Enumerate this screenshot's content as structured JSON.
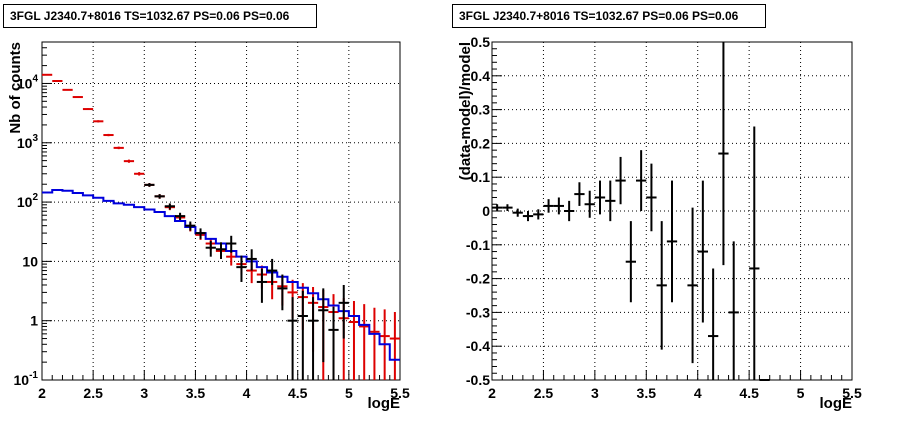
{
  "chart_data": [
    {
      "type": "scatter",
      "title": "3FGL J2340.7+8016 TS=1032.67 PS=0.06 PS=0.06",
      "xlabel": "logE",
      "ylabel": "Nb of counts",
      "xlim": [
        2,
        5.5
      ],
      "ylim": [
        0.1,
        50000
      ],
      "yscale": "log",
      "grid": true,
      "x_ticks": [
        "2",
        "2.5",
        "3",
        "3.5",
        "4",
        "4.5",
        "5",
        "5.5"
      ],
      "y_ticks": [
        "10^-1",
        "1",
        "10",
        "10^2",
        "10^3",
        "10^4"
      ],
      "bin_width": 0.1,
      "series": [
        {
          "color": "#dd0000",
          "style": "errorbar",
          "x": [
            2.05,
            2.15,
            2.25,
            2.35,
            2.45,
            2.55,
            2.65,
            2.75,
            2.85,
            2.95,
            3.05,
            3.15,
            3.25,
            3.35,
            3.45,
            3.55,
            3.65,
            3.75,
            3.85,
            3.95,
            4.05,
            4.15,
            4.25,
            4.35,
            4.45,
            4.55,
            4.65,
            4.75,
            4.85,
            4.95,
            5.05,
            5.15,
            5.25,
            5.35,
            5.45
          ],
          "y": [
            14000,
            11000,
            7800,
            5900,
            3700,
            2300,
            1350,
            820,
            490,
            300,
            195,
            125,
            82,
            55,
            38,
            28,
            20,
            15,
            12,
            9,
            7,
            6,
            4.5,
            3.8,
            3,
            2.5,
            2,
            1.7,
            1.4,
            1.1,
            0.95,
            0.8,
            0.65,
            0.55,
            0.5
          ],
          "yerr_low": [
            300,
            300,
            200,
            150,
            120,
            100,
            60,
            40,
            30,
            20,
            14,
            11,
            9,
            7,
            6,
            5,
            4.5,
            4,
            3.5,
            3,
            2.7,
            2.5,
            2.2,
            2,
            1.9,
            1.8,
            1.7,
            1.6,
            1.4,
            1.1,
            0.95,
            0.8,
            0.65,
            0.55,
            0.5
          ],
          "yerr_high": [
            300,
            300,
            200,
            150,
            120,
            100,
            60,
            40,
            30,
            20,
            14,
            11,
            9,
            7,
            6,
            5,
            4.5,
            4,
            3.5,
            3,
            2.7,
            2.5,
            2.2,
            2,
            1.9,
            1.8,
            1.7,
            1.6,
            1.4,
            1.3,
            1.2,
            1.1,
            1.0,
            1.0,
            0.9
          ]
        },
        {
          "color": "#000000",
          "style": "errorbar",
          "x": [
            3.05,
            3.15,
            3.25,
            3.35,
            3.45,
            3.55,
            3.65,
            3.75,
            3.85,
            3.95,
            4.05,
            4.15,
            4.25,
            4.35,
            4.45,
            4.55,
            4.65,
            4.75,
            4.85,
            4.95
          ],
          "y": [
            195,
            125,
            85,
            58,
            40,
            30,
            17,
            16,
            20,
            8,
            11,
            4.5,
            7,
            3.5,
            1,
            1.2,
            1,
            1.5,
            0.7,
            2
          ],
          "yerr_low": [
            14,
            11,
            10,
            8,
            7,
            6,
            5,
            5,
            6,
            3.5,
            4,
            2.5,
            3,
            2,
            0.95,
            1.15,
            0.95,
            1.3,
            0.68,
            1.5
          ],
          "yerr_high": [
            14,
            11,
            10,
            8,
            7,
            6,
            5,
            5,
            7,
            4.5,
            5,
            3,
            4,
            2.5,
            1.5,
            2,
            1.5,
            2,
            1,
            2
          ]
        },
        {
          "color": "#0000dd",
          "style": "step",
          "x": [
            2.0,
            2.1,
            2.2,
            2.3,
            2.4,
            2.5,
            2.6,
            2.7,
            2.8,
            2.9,
            3.0,
            3.1,
            3.2,
            3.3,
            3.4,
            3.5,
            3.6,
            3.7,
            3.8,
            3.9,
            4.0,
            4.1,
            4.2,
            4.3,
            4.4,
            4.5,
            4.6,
            4.7,
            4.8,
            4.9,
            5.0,
            5.1,
            5.2,
            5.3,
            5.4
          ],
          "y": [
            145,
            160,
            155,
            142,
            130,
            118,
            105,
            95,
            90,
            82,
            75,
            68,
            58,
            48,
            38,
            30,
            24,
            20,
            15,
            12,
            10,
            8,
            6.5,
            5.5,
            4.5,
            3.6,
            2.9,
            2.3,
            1.8,
            1.45,
            1.2,
            0.85,
            0.6,
            0.4,
            0.22
          ]
        }
      ]
    },
    {
      "type": "scatter",
      "title": "3FGL J2340.7+8016 TS=1032.67 PS=0.06 PS=0.06",
      "xlabel": "logE",
      "ylabel": "(data-model)/model",
      "xlim": [
        2,
        5.5
      ],
      "ylim": [
        -0.5,
        0.5
      ],
      "grid": true,
      "x_ticks": [
        "2",
        "2.5",
        "3",
        "3.5",
        "4",
        "4.5",
        "5",
        "5.5"
      ],
      "y_ticks": [
        "-0.5",
        "-0.4",
        "-0.3",
        "-0.2",
        "-0.1",
        "0",
        "0.1",
        "0.2",
        "0.3",
        "0.4",
        "0.5"
      ],
      "bin_width": 0.1,
      "series": [
        {
          "color": "#000000",
          "style": "errorbar",
          "x": [
            2.05,
            2.15,
            2.25,
            2.35,
            2.45,
            2.55,
            2.65,
            2.75,
            2.85,
            2.95,
            3.05,
            3.15,
            3.25,
            3.35,
            3.45,
            3.55,
            3.65,
            3.75,
            3.85,
            3.95,
            4.05,
            4.15,
            4.25,
            4.35,
            4.45,
            4.55,
            4.65
          ],
          "y": [
            0.01,
            0.01,
            -0.005,
            -0.015,
            -0.01,
            0.015,
            0.015,
            0.0,
            0.05,
            0.02,
            0.04,
            0.03,
            0.09,
            -0.15,
            0.09,
            0.04,
            -0.22,
            -0.09,
            -0.0,
            -0.22,
            -0.12,
            -0.37,
            0.17,
            -0.3,
            0.0,
            -0.17,
            -0.5
          ],
          "yerr": [
            0.01,
            0.01,
            0.012,
            0.015,
            0.015,
            0.02,
            0.025,
            0.03,
            0.035,
            0.04,
            0.05,
            0.06,
            0.07,
            0.12,
            0.09,
            0.1,
            0.19,
            0.18,
            0.0,
            0.23,
            0.21,
            0.2,
            0.33,
            0.21,
            0.0,
            0.42,
            0.0
          ],
          "xerr_visible": [
            true,
            true,
            true,
            true,
            true,
            true,
            true,
            true,
            true,
            true,
            true,
            true,
            true,
            true,
            true,
            true,
            true,
            true,
            false,
            true,
            true,
            true,
            true,
            true,
            false,
            true,
            true
          ]
        }
      ]
    }
  ]
}
